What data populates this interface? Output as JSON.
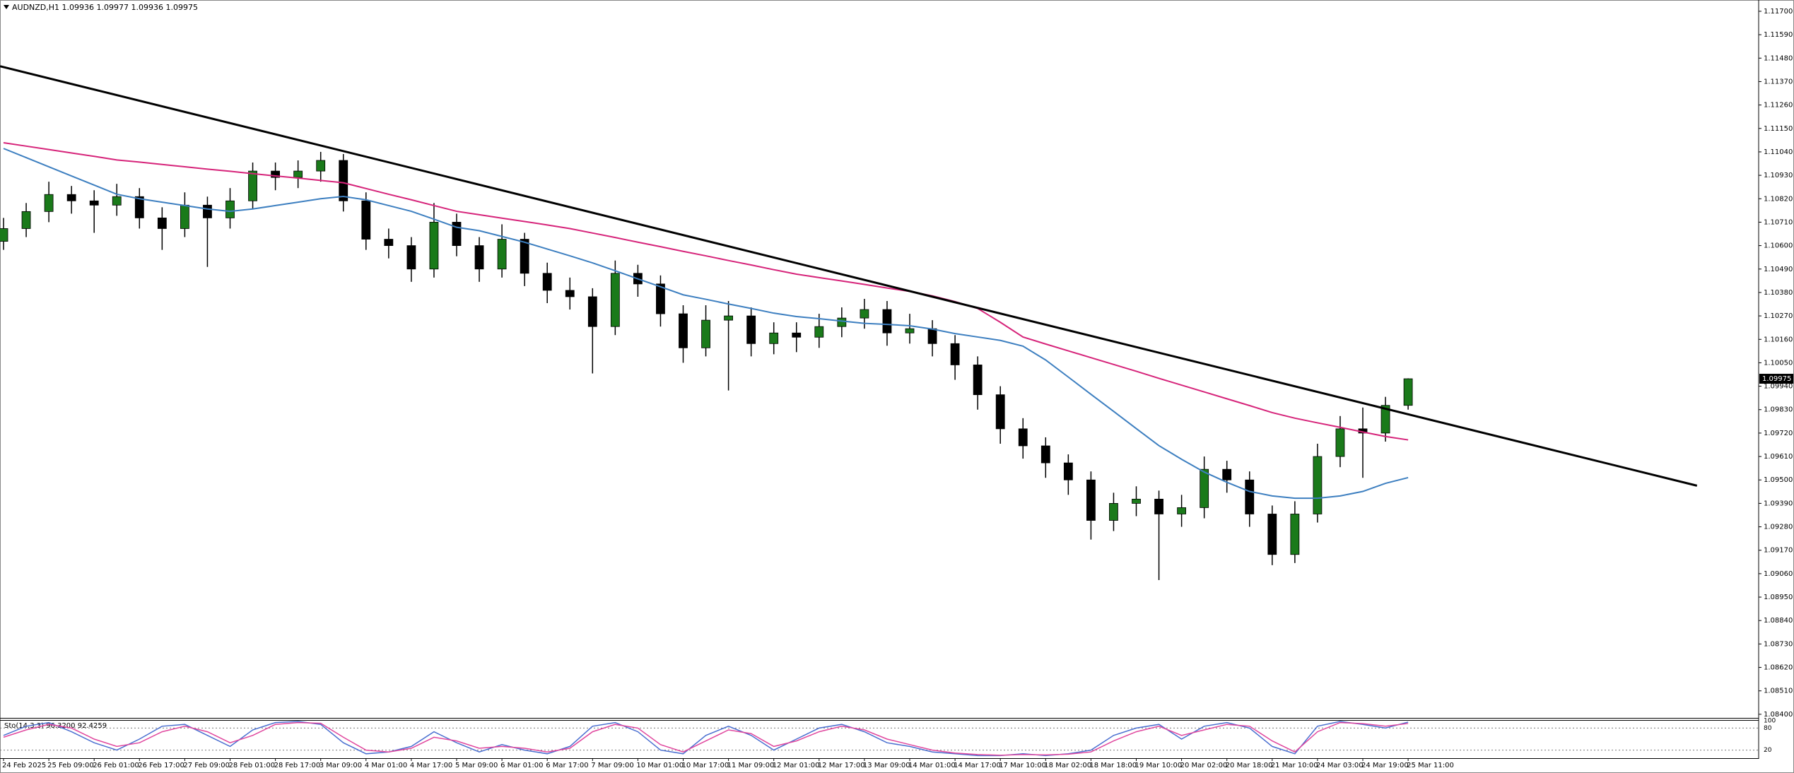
{
  "chart_data": {
    "type": "candlestick",
    "title": "AUDNZD,H1  1.09936 1.09977 1.09936 1.09975",
    "categories": [
      "24 Feb 2025",
      null,
      "25 Feb 09:00",
      null,
      "26 Feb 01:00",
      null,
      "26 Feb 17:00",
      null,
      "27 Feb 09:00",
      null,
      "28 Feb 01:00",
      null,
      "28 Feb 17:00",
      null,
      "3 Mar 09:00",
      null,
      "4 Mar 01:00",
      null,
      "4 Mar 17:00",
      null,
      "5 Mar 09:00",
      null,
      "6 Mar 01:00",
      null,
      "6 Mar 17:00",
      null,
      "7 Mar 09:00",
      null,
      "10 Mar 01:00",
      null,
      "10 Mar 17:00",
      null,
      "11 Mar 09:00",
      null,
      "12 Mar 01:00",
      null,
      "12 Mar 17:00",
      null,
      "13 Mar 09:00",
      null,
      "14 Mar 01:00",
      null,
      "14 Mar 17:00",
      null,
      "17 Mar 10:00",
      null,
      "18 Mar 02:00",
      null,
      "18 Mar 18:00",
      null,
      "19 Mar 10:00",
      null,
      "20 Mar 02:00",
      null,
      "20 Mar 18:00",
      null,
      "21 Mar 10:00",
      null,
      "24 Mar 03:00",
      null,
      "24 Mar 19:00",
      null,
      "25 Mar 11:00"
    ],
    "ohlc": [
      [
        1.1062,
        1.1073,
        1.1058,
        1.1068
      ],
      [
        1.1068,
        1.108,
        1.1064,
        1.1076
      ],
      [
        1.1076,
        1.109,
        1.1071,
        1.1084
      ],
      [
        1.1084,
        1.1088,
        1.1075,
        1.1081
      ],
      [
        1.1081,
        1.1086,
        1.1066,
        1.1079
      ],
      [
        1.1079,
        1.1089,
        1.1074,
        1.1083
      ],
      [
        1.1083,
        1.1087,
        1.1068,
        1.1073
      ],
      [
        1.1073,
        1.1078,
        1.1058,
        1.1068
      ],
      [
        1.1068,
        1.1085,
        1.1064,
        1.1079
      ],
      [
        1.1079,
        1.1083,
        1.105,
        1.1073
      ],
      [
        1.1073,
        1.1087,
        1.1068,
        1.1081
      ],
      [
        1.1081,
        1.1099,
        1.1077,
        1.1095
      ],
      [
        1.1095,
        1.1099,
        1.1086,
        1.1092
      ],
      [
        1.1092,
        1.11,
        1.1087,
        1.1095
      ],
      [
        1.1095,
        1.1104,
        1.109,
        1.11
      ],
      [
        1.11,
        1.1103,
        1.1076,
        1.1081
      ],
      [
        1.1081,
        1.1085,
        1.1058,
        1.1063
      ],
      [
        1.1063,
        1.1068,
        1.1054,
        1.106
      ],
      [
        1.106,
        1.1064,
        1.1043,
        1.1049
      ],
      [
        1.1049,
        1.108,
        1.1045,
        1.1071
      ],
      [
        1.1071,
        1.1075,
        1.1055,
        1.106
      ],
      [
        1.106,
        1.1064,
        1.1043,
        1.1049
      ],
      [
        1.1049,
        1.107,
        1.1045,
        1.1063
      ],
      [
        1.1063,
        1.1066,
        1.1041,
        1.1047
      ],
      [
        1.1047,
        1.1052,
        1.1033,
        1.1039
      ],
      [
        1.1039,
        1.1045,
        1.103,
        1.1036
      ],
      [
        1.1036,
        1.104,
        1.1,
        1.1022
      ],
      [
        1.1022,
        1.1053,
        1.1018,
        1.1047
      ],
      [
        1.1047,
        1.1051,
        1.1036,
        1.1042
      ],
      [
        1.1042,
        1.1046,
        1.1022,
        1.1028
      ],
      [
        1.1028,
        1.1032,
        1.1005,
        1.1012
      ],
      [
        1.1012,
        1.1032,
        1.1008,
        1.1025
      ],
      [
        1.1025,
        1.1034,
        1.0992,
        1.1027
      ],
      [
        1.1027,
        1.1031,
        1.1008,
        1.1014
      ],
      [
        1.1014,
        1.1024,
        1.1009,
        1.1019
      ],
      [
        1.1019,
        1.1024,
        1.101,
        1.1017
      ],
      [
        1.1017,
        1.1028,
        1.1012,
        1.1022
      ],
      [
        1.1022,
        1.1031,
        1.1017,
        1.1026
      ],
      [
        1.1026,
        1.1035,
        1.1021,
        1.103
      ],
      [
        1.103,
        1.1034,
        1.1013,
        1.1019
      ],
      [
        1.1019,
        1.1028,
        1.1014,
        1.1021
      ],
      [
        1.1021,
        1.1025,
        1.1008,
        1.1014
      ],
      [
        1.1014,
        1.1018,
        1.0997,
        1.1004
      ],
      [
        1.1004,
        1.1008,
        1.0983,
        1.099
      ],
      [
        1.099,
        1.0994,
        1.0967,
        1.0974
      ],
      [
        1.0974,
        1.0979,
        1.096,
        1.0966
      ],
      [
        1.0966,
        1.097,
        1.0951,
        1.0958
      ],
      [
        1.0958,
        1.0962,
        1.0943,
        1.095
      ],
      [
        1.095,
        1.0954,
        1.0922,
        1.0931
      ],
      [
        1.0931,
        1.0944,
        1.0926,
        1.0939
      ],
      [
        1.0939,
        1.0947,
        1.0933,
        1.0941
      ],
      [
        1.0941,
        1.0945,
        1.0903,
        1.0934
      ],
      [
        1.0934,
        1.0943,
        1.0928,
        1.0937
      ],
      [
        1.0937,
        1.0961,
        1.0932,
        1.0955
      ],
      [
        1.0955,
        1.0959,
        1.0944,
        1.095
      ],
      [
        1.095,
        1.0954,
        1.0928,
        1.0934
      ],
      [
        1.0934,
        1.0938,
        1.091,
        1.0915
      ],
      [
        1.0915,
        1.094,
        1.0911,
        1.0934
      ],
      [
        1.0934,
        1.0967,
        1.093,
        1.0961
      ],
      [
        1.0961,
        1.098,
        1.0956,
        1.0974
      ],
      [
        1.0974,
        1.0984,
        1.0951,
        1.0972
      ],
      [
        1.0972,
        1.0989,
        1.0968,
        1.0985
      ],
      [
        1.0985,
        1.09977,
        1.0983,
        1.09975
      ]
    ],
    "bull_color": "#1a7a1a",
    "bear_color": "#000000",
    "series": [
      {
        "color": "#3d7fc0",
        "values": [
          1.11056,
          1.11013,
          1.1097,
          1.10927,
          1.10884,
          1.10841,
          1.1082,
          1.10804,
          1.10788,
          1.10772,
          1.10761,
          1.10772,
          1.10788,
          1.10804,
          1.1082,
          1.10831,
          1.10815,
          1.10788,
          1.10761,
          1.10724,
          1.10686,
          1.1067,
          1.10643,
          1.10616,
          1.10584,
          1.10552,
          1.10519,
          1.10482,
          1.10444,
          1.10407,
          1.10369,
          1.10348,
          1.10326,
          1.10305,
          1.10283,
          1.10267,
          1.10257,
          1.10246,
          1.10235,
          1.1023,
          1.10224,
          1.10208,
          1.10187,
          1.10171,
          1.10155,
          1.10128,
          1.10063,
          1.09983,
          1.09902,
          1.09822,
          1.09741,
          1.09661,
          1.09597,
          1.09537,
          1.09489,
          1.09446,
          1.09425,
          1.09414,
          1.09414,
          1.09425,
          1.09446,
          1.09484,
          1.09511
        ]
      },
      {
        "color": "#d6247a",
        "values": [
          1.11083,
          1.11067,
          1.11051,
          1.11035,
          1.11019,
          1.11002,
          1.10992,
          1.10981,
          1.1097,
          1.10959,
          1.10949,
          1.10938,
          1.10927,
          1.10917,
          1.10906,
          1.10895,
          1.10868,
          1.10841,
          1.10815,
          1.10788,
          1.10761,
          1.10745,
          1.10729,
          1.10713,
          1.10697,
          1.1068,
          1.10659,
          1.10638,
          1.10616,
          1.10595,
          1.10573,
          1.10552,
          1.1053,
          1.10509,
          1.10487,
          1.10466,
          1.1045,
          1.10434,
          1.10418,
          1.10401,
          1.10385,
          1.10364,
          1.10337,
          1.10305,
          1.1024,
          1.10171,
          1.10138,
          1.10106,
          1.10074,
          1.10042,
          1.1001,
          1.09977,
          1.09945,
          1.09913,
          1.09881,
          1.09849,
          1.09816,
          1.0979,
          1.09768,
          1.09747,
          1.09725,
          1.09704,
          1.09688
        ]
      }
    ],
    "trendline": {
      "color": "#000000",
      "values": [
        1.11442,
        1.09473
      ]
    },
    "last_price": {
      "value": 1.09975,
      "label": "1.09975"
    },
    "ylim": [
      1.08383,
      1.11743
    ],
    "yticks": [
      {
        "value": 1.117,
        "label": "1.11700"
      },
      {
        "value": 1.1159,
        "label": "1.11590"
      },
      {
        "value": 1.1148,
        "label": "1.11480"
      },
      {
        "value": 1.1137,
        "label": "1.11370"
      },
      {
        "value": 1.1126,
        "label": "1.11260"
      },
      {
        "value": 1.1115,
        "label": "1.11150"
      },
      {
        "value": 1.1104,
        "label": "1.11040"
      },
      {
        "value": 1.1093,
        "label": "1.10930"
      },
      {
        "value": 1.1082,
        "label": "1.10820"
      },
      {
        "value": 1.1071,
        "label": "1.10710"
      },
      {
        "value": 1.106,
        "label": "1.10600"
      },
      {
        "value": 1.1049,
        "label": "1.10490"
      },
      {
        "value": 1.1038,
        "label": "1.10380"
      },
      {
        "value": 1.1027,
        "label": "1.10270"
      },
      {
        "value": 1.1016,
        "label": "1.10160"
      },
      {
        "value": 1.1005,
        "label": "1.10050"
      },
      {
        "value": 1.0994,
        "label": "1.09940"
      },
      {
        "value": 1.0983,
        "label": "1.09830"
      },
      {
        "value": 1.0972,
        "label": "1.09720"
      },
      {
        "value": 1.0961,
        "label": "1.09610"
      },
      {
        "value": 1.095,
        "label": "1.09500"
      },
      {
        "value": 1.0939,
        "label": "1.09390"
      },
      {
        "value": 1.0928,
        "label": "1.09280"
      },
      {
        "value": 1.0917,
        "label": "1.09170"
      },
      {
        "value": 1.0906,
        "label": "1.09060"
      },
      {
        "value": 1.0895,
        "label": "1.08950"
      },
      {
        "value": 1.0884,
        "label": "1.08840"
      },
      {
        "value": 1.0873,
        "label": "1.08730"
      },
      {
        "value": 1.0862,
        "label": "1.08620"
      },
      {
        "value": 1.0851,
        "label": "1.08510"
      },
      {
        "value": 1.084,
        "label": "1.08400"
      }
    ],
    "indicator": {
      "title": "Sto(14,3,3) 96.3200 92.4259",
      "ylim": [
        0,
        100
      ],
      "yticks": [
        100,
        80,
        20
      ],
      "series": [
        {
          "color": "#4a6fd0",
          "values": [
            60,
            85,
            95,
            70,
            40,
            20,
            50,
            85,
            90,
            60,
            30,
            75,
            95,
            98,
            90,
            40,
            10,
            15,
            30,
            70,
            40,
            15,
            35,
            20,
            10,
            30,
            85,
            95,
            70,
            20,
            10,
            60,
            85,
            60,
            20,
            50,
            80,
            90,
            70,
            40,
            30,
            15,
            10,
            5,
            5,
            10,
            5,
            10,
            20,
            60,
            80,
            90,
            50,
            85,
            95,
            80,
            30,
            10,
            85,
            98,
            90,
            80,
            96.32
          ]
        },
        {
          "color": "#e0479e",
          "values": [
            55,
            75,
            90,
            80,
            50,
            30,
            40,
            70,
            85,
            70,
            40,
            60,
            90,
            95,
            93,
            55,
            20,
            15,
            25,
            55,
            45,
            25,
            30,
            25,
            15,
            25,
            70,
            90,
            80,
            35,
            15,
            45,
            75,
            65,
            30,
            45,
            70,
            85,
            75,
            50,
            35,
            20,
            12,
            8,
            6,
            8,
            7,
            9,
            15,
            45,
            70,
            85,
            60,
            75,
            90,
            85,
            45,
            15,
            70,
            95,
            92,
            85,
            92.4259
          ]
        }
      ]
    }
  }
}
